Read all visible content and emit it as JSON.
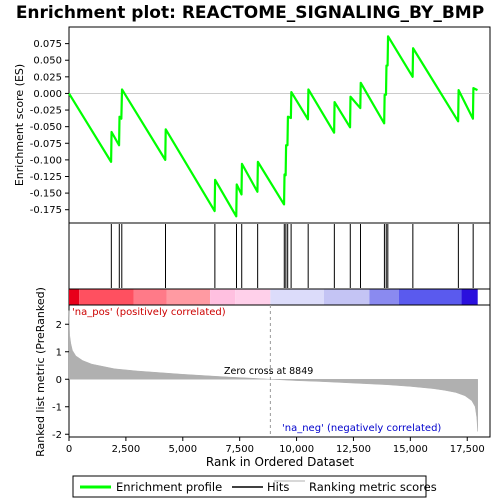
{
  "chart_data": {
    "type": "line",
    "title": "Enrichment plot: REACTOME_SIGNALING_BY_BMP",
    "panels": {
      "enrichment": {
        "ylabel": "Enrichment score (ES)",
        "ylim": [
          -0.195,
          0.1
        ],
        "yticks": [
          0.075,
          0.05,
          0.025,
          0.0,
          -0.025,
          -0.05,
          -0.075,
          -0.1,
          -0.125,
          -0.15,
          -0.175
        ],
        "ytick_labels": [
          "0.075",
          "0.050",
          "0.025",
          "0.000",
          "-0.025",
          "-0.050",
          "-0.075",
          "-0.100",
          "-0.125",
          "-0.150",
          "-0.175"
        ],
        "series": [
          {
            "name": "Enrichment profile",
            "color": "#00ff00",
            "x": [
              0,
              1850,
              1870,
              2200,
              2220,
              2300,
              2330,
              4230,
              4250,
              6400,
              6420,
              7350,
              7370,
              7580,
              7600,
              8280,
              8300,
              9450,
              9470,
              9520,
              9540,
              9600,
              9620,
              9750,
              9770,
              10500,
              10520,
              11650,
              11670,
              12350,
              12370,
              12800,
              12820,
              13850,
              13870,
              13930,
              13950,
              14000,
              14020,
              15100,
              15120,
              17100,
              17120,
              17750,
              17770,
              17950
            ],
            "y": [
              0.0,
              -0.103,
              -0.058,
              -0.078,
              -0.035,
              -0.038,
              0.006,
              -0.1,
              -0.054,
              -0.177,
              -0.13,
              -0.185,
              -0.137,
              -0.152,
              -0.106,
              -0.148,
              -0.103,
              -0.167,
              -0.122,
              -0.123,
              -0.078,
              -0.078,
              -0.035,
              -0.037,
              0.002,
              -0.039,
              0.006,
              -0.059,
              -0.013,
              -0.051,
              -0.005,
              -0.022,
              0.016,
              -0.045,
              -0.002,
              -0.002,
              0.042,
              0.042,
              0.086,
              0.025,
              0.068,
              -0.042,
              0.005,
              -0.038,
              0.008,
              0.005
            ]
          }
        ]
      },
      "hits": {
        "name": "Hits",
        "positions": [
          1860,
          2210,
          2320,
          4240,
          6410,
          7360,
          7590,
          8290,
          9460,
          9530,
          9610,
          9760,
          10510,
          11660,
          12360,
          12810,
          13860,
          13940,
          14010,
          15110,
          17110,
          17760
        ]
      },
      "ranked_metric": {
        "name": "Ranking metric scores",
        "color": "#b0b0b0",
        "ylabel": "Ranked list metric (PreRanked)",
        "ylim": [
          -2.1,
          2.7
        ],
        "yticks": [
          2,
          1,
          0,
          -1,
          -2
        ],
        "ytick_labels": [
          "2",
          "1",
          "0",
          "-1",
          "-2"
        ],
        "x": [
          0,
          30,
          80,
          150,
          300,
          600,
          1000,
          2000,
          3000,
          4000,
          5000,
          6000,
          7000,
          8000,
          8849,
          10000,
          11000,
          12000,
          13000,
          14000,
          15000,
          16000,
          16500,
          17000,
          17400,
          17700,
          17850,
          17920,
          17960
        ],
        "y": [
          2.5,
          1.6,
          1.3,
          1.05,
          0.85,
          0.68,
          0.55,
          0.38,
          0.3,
          0.24,
          0.18,
          0.13,
          0.08,
          0.04,
          0.0,
          -0.05,
          -0.08,
          -0.12,
          -0.16,
          -0.2,
          -0.26,
          -0.34,
          -0.4,
          -0.48,
          -0.6,
          -0.78,
          -1.0,
          -1.4,
          -1.9
        ]
      }
    },
    "xlabel": "Rank in Ordered Dataset",
    "xlim": [
      0,
      18500
    ],
    "xticks": [
      0,
      2500,
      5000,
      7500,
      10000,
      12500,
      15000,
      17500
    ],
    "xtick_labels": [
      "0",
      "2,500",
      "5,000",
      "7,500",
      "10,000",
      "12,500",
      "15,000",
      "17,500"
    ],
    "zero_cross": 8849,
    "zero_cross_label": "Zero cross at 8849",
    "pos_label": "'na_pos' (positively correlated)",
    "neg_label": "'na_neg' (negatively correlated)",
    "colorbar": {
      "max_rank": 17960,
      "segments": [
        {
          "from": 0,
          "to": 450,
          "color": "#e8001a"
        },
        {
          "from": 450,
          "to": 2850,
          "color": "#ff5060"
        },
        {
          "from": 2850,
          "to": 4300,
          "color": "#ff7a88"
        },
        {
          "from": 4300,
          "to": 6200,
          "color": "#ff9aa2"
        },
        {
          "from": 6200,
          "to": 7300,
          "color": "#ffc0e0"
        },
        {
          "from": 7300,
          "to": 8849,
          "color": "#ffd0ea"
        },
        {
          "from": 8849,
          "to": 11200,
          "color": "#dcdcfa"
        },
        {
          "from": 11200,
          "to": 13200,
          "color": "#c4c4f4"
        },
        {
          "from": 13200,
          "to": 14500,
          "color": "#8a8af0"
        },
        {
          "from": 14500,
          "to": 17250,
          "color": "#5a5aee"
        },
        {
          "from": 17250,
          "to": 17960,
          "color": "#2a10dd"
        }
      ]
    },
    "legend": {
      "placement": "bottom",
      "items": [
        {
          "label": "Enrichment profile",
          "color": "#00ff00"
        },
        {
          "label": "Hits",
          "color": "#000000"
        },
        {
          "label": "Ranking metric scores",
          "color": "#b0b0b0"
        }
      ]
    }
  }
}
